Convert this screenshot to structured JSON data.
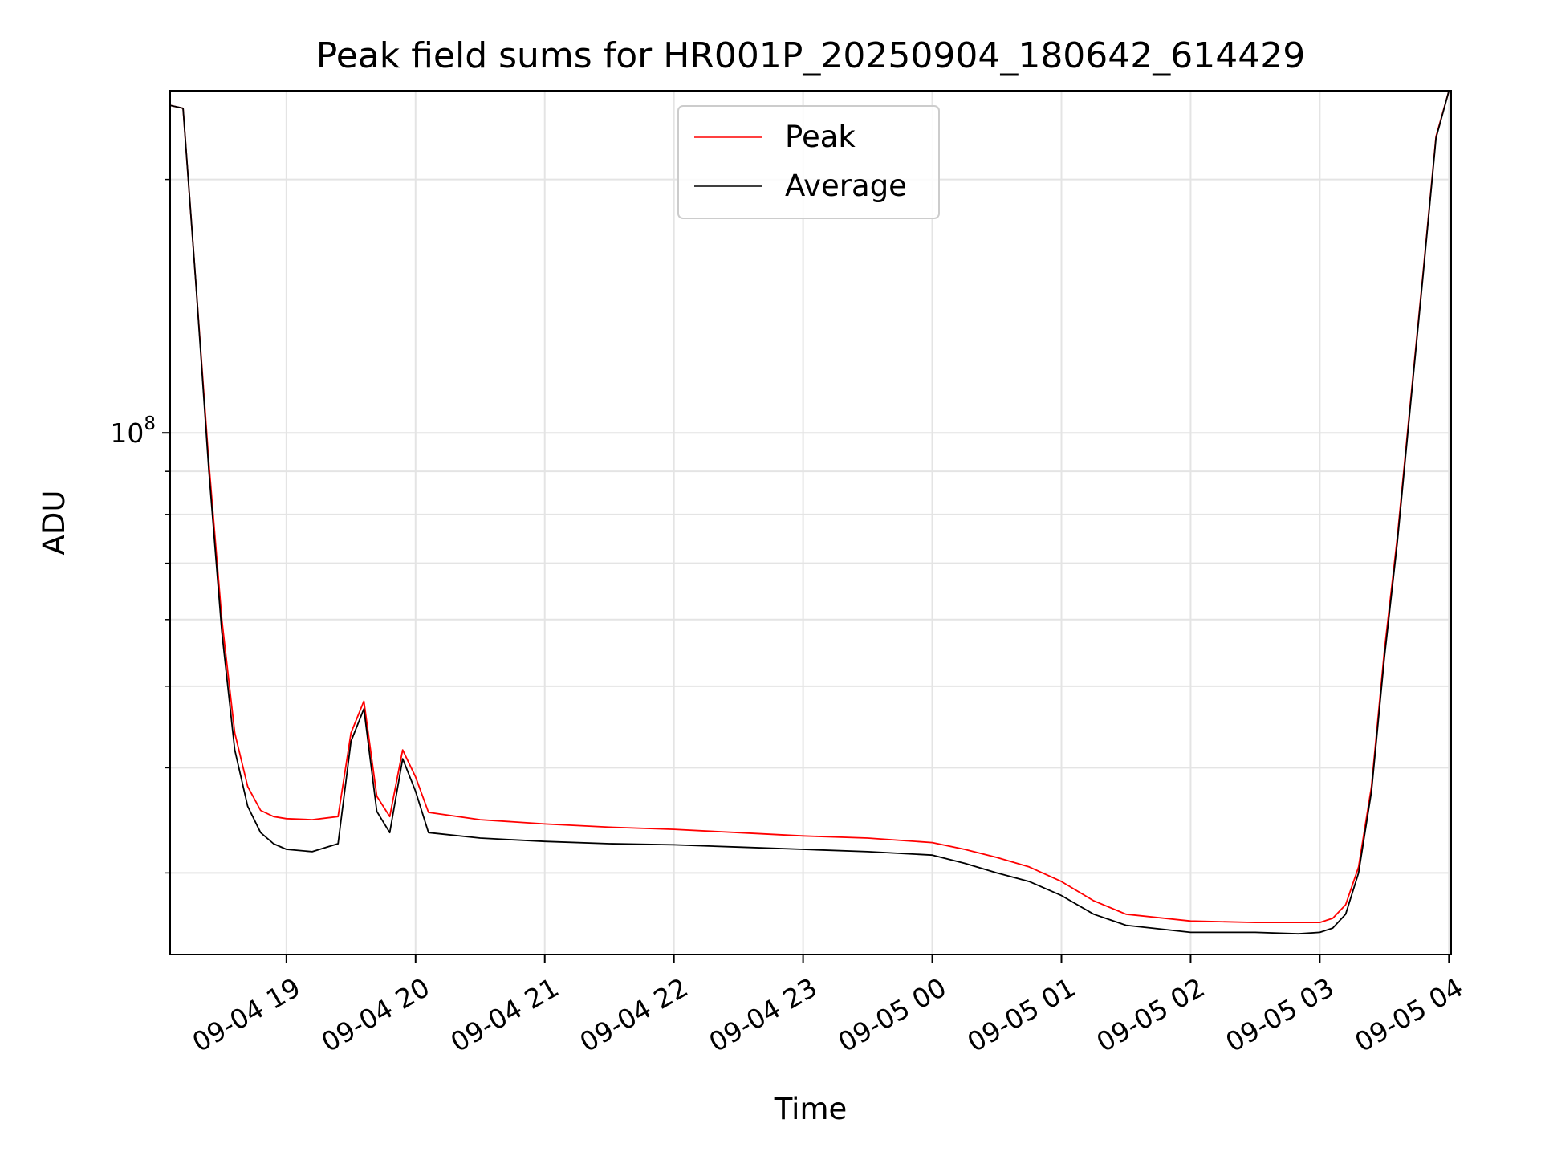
{
  "chart_data": {
    "type": "line",
    "title": "Peak field sums for HR001P_20250904_180642_614429",
    "xlabel": "Time",
    "ylabel": "ADU",
    "y_scale": "log",
    "ylim": [
      24000000,
      255000000
    ],
    "xlim": [
      "2025-09-04 18:06",
      "2025-09-05 04:01"
    ],
    "x_ticks": [
      "2025-09-04 19:00",
      "2025-09-04 20:00",
      "2025-09-04 21:00",
      "2025-09-04 22:00",
      "2025-09-04 23:00",
      "2025-09-05 00:00",
      "2025-09-05 01:00",
      "2025-09-05 02:00",
      "2025-09-05 03:00",
      "2025-09-05 04:00"
    ],
    "x_tick_labels": [
      "09-04 19",
      "09-04 20",
      "09-04 21",
      "09-04 22",
      "09-04 23",
      "09-05 00",
      "09-05 01",
      "09-05 02",
      "09-05 03",
      "09-05 04"
    ],
    "y_major_ticks": [
      100000000
    ],
    "y_major_tick_labels": [
      {
        "base": "10",
        "exp": "8"
      }
    ],
    "y_minor_ticks": [
      30000000,
      40000000,
      50000000,
      60000000,
      70000000,
      80000000,
      90000000,
      200000000
    ],
    "grid": true,
    "legend_position": "upper center",
    "series": [
      {
        "name": "Peak",
        "color": "#ff0000",
        "x": [
          "2025-09-04 18:06",
          "2025-09-04 18:12",
          "2025-09-04 18:18",
          "2025-09-04 18:24",
          "2025-09-04 18:30",
          "2025-09-04 18:36",
          "2025-09-04 18:42",
          "2025-09-04 18:48",
          "2025-09-04 18:54",
          "2025-09-04 19:00",
          "2025-09-04 19:12",
          "2025-09-04 19:24",
          "2025-09-04 19:30",
          "2025-09-04 19:36",
          "2025-09-04 19:42",
          "2025-09-04 19:48",
          "2025-09-04 19:54",
          "2025-09-04 20:00",
          "2025-09-04 20:06",
          "2025-09-04 20:30",
          "2025-09-04 21:00",
          "2025-09-04 21:30",
          "2025-09-04 22:00",
          "2025-09-04 22:30",
          "2025-09-04 23:00",
          "2025-09-04 23:30",
          "2025-09-05 00:00",
          "2025-09-05 00:15",
          "2025-09-05 00:30",
          "2025-09-05 00:45",
          "2025-09-05 01:00",
          "2025-09-05 01:15",
          "2025-09-05 01:30",
          "2025-09-05 02:00",
          "2025-09-05 02:30",
          "2025-09-05 02:50",
          "2025-09-05 03:00",
          "2025-09-05 03:06",
          "2025-09-05 03:12",
          "2025-09-05 03:18",
          "2025-09-05 03:24",
          "2025-09-05 03:30",
          "2025-09-05 03:36",
          "2025-09-05 03:42",
          "2025-09-05 03:48",
          "2025-09-05 03:54",
          "2025-09-05 04:00"
        ],
        "values": [
          245000000,
          243000000,
          150000000,
          92000000,
          60000000,
          44000000,
          38000000,
          35600000,
          35000000,
          34800000,
          34700000,
          35000000,
          44000000,
          48000000,
          37000000,
          35000000,
          42000000,
          39000000,
          35400000,
          34700000,
          34300000,
          34000000,
          33800000,
          33500000,
          33200000,
          33000000,
          32600000,
          32000000,
          31300000,
          30500000,
          29300000,
          27800000,
          26800000,
          26300000,
          26200000,
          26200000,
          26200000,
          26500000,
          27500000,
          30500000,
          38000000,
          55000000,
          75000000,
          108000000,
          155000000,
          225000000,
          255000000
        ]
      },
      {
        "name": "Average",
        "color": "#000000",
        "x": [
          "2025-09-04 18:06",
          "2025-09-04 18:12",
          "2025-09-04 18:18",
          "2025-09-04 18:24",
          "2025-09-04 18:30",
          "2025-09-04 18:36",
          "2025-09-04 18:42",
          "2025-09-04 18:48",
          "2025-09-04 18:54",
          "2025-09-04 19:00",
          "2025-09-04 19:12",
          "2025-09-04 19:24",
          "2025-09-04 19:30",
          "2025-09-04 19:36",
          "2025-09-04 19:42",
          "2025-09-04 19:48",
          "2025-09-04 19:54",
          "2025-09-04 20:00",
          "2025-09-04 20:06",
          "2025-09-04 20:30",
          "2025-09-04 21:00",
          "2025-09-04 21:30",
          "2025-09-04 22:00",
          "2025-09-04 22:30",
          "2025-09-04 23:00",
          "2025-09-04 23:30",
          "2025-09-05 00:00",
          "2025-09-05 00:15",
          "2025-09-05 00:30",
          "2025-09-05 00:45",
          "2025-09-05 01:00",
          "2025-09-05 01:15",
          "2025-09-05 01:30",
          "2025-09-05 02:00",
          "2025-09-05 02:30",
          "2025-09-05 02:50",
          "2025-09-05 03:00",
          "2025-09-05 03:06",
          "2025-09-05 03:12",
          "2025-09-05 03:18",
          "2025-09-05 03:24",
          "2025-09-05 03:30",
          "2025-09-05 03:36",
          "2025-09-05 03:42",
          "2025-09-05 03:48",
          "2025-09-05 03:54",
          "2025-09-05 04:00"
        ],
        "values": [
          245000000,
          243000000,
          150000000,
          90000000,
          58000000,
          42000000,
          36000000,
          33500000,
          32500000,
          32000000,
          31800000,
          32500000,
          43000000,
          47000000,
          35500000,
          33500000,
          41000000,
          37500000,
          33500000,
          33000000,
          32700000,
          32500000,
          32400000,
          32200000,
          32000000,
          31800000,
          31500000,
          30800000,
          30000000,
          29300000,
          28200000,
          26800000,
          26000000,
          25500000,
          25500000,
          25400000,
          25500000,
          25800000,
          26800000,
          30000000,
          37500000,
          54000000,
          74000000,
          107000000,
          154000000,
          224000000,
          255000000
        ]
      }
    ]
  }
}
